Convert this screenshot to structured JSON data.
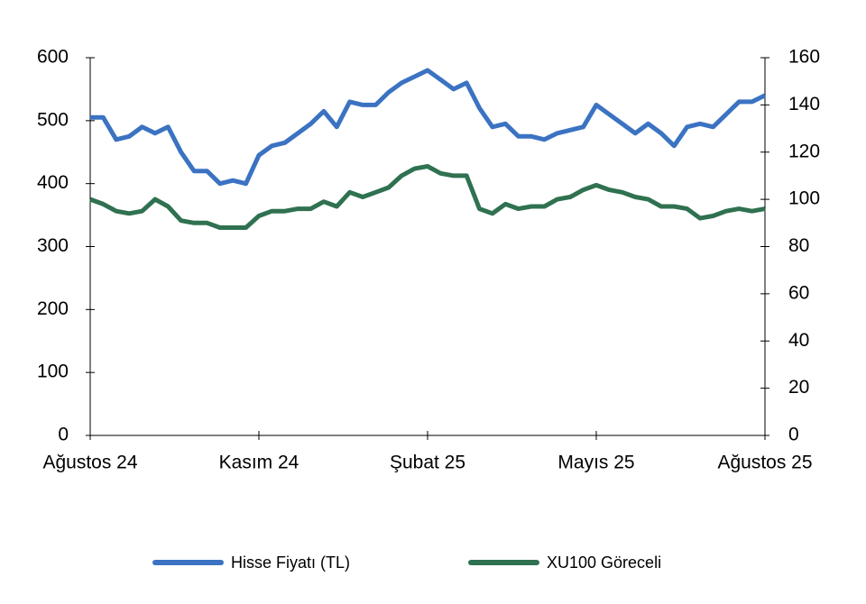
{
  "chart_data": {
    "type": "line",
    "categories": [
      "Ağustos 24",
      null,
      null,
      null,
      null,
      null,
      null,
      null,
      null,
      null,
      null,
      null,
      null,
      "Kasım 24",
      null,
      null,
      null,
      null,
      null,
      null,
      null,
      null,
      null,
      null,
      null,
      null,
      "Şubat 25",
      null,
      null,
      null,
      null,
      null,
      null,
      null,
      null,
      null,
      null,
      null,
      null,
      "Mayıs 25",
      null,
      null,
      null,
      null,
      null,
      null,
      null,
      null,
      null,
      null,
      null,
      null,
      "Ağustos 25"
    ],
    "series": [
      {
        "name": "Hisse Fiyatı (TL)",
        "color": "#3b73c2",
        "axis": "y",
        "values": [
          505,
          505,
          470,
          475,
          490,
          480,
          490,
          450,
          420,
          420,
          400,
          405,
          400,
          445,
          460,
          465,
          480,
          495,
          515,
          490,
          530,
          525,
          525,
          545,
          560,
          570,
          580,
          565,
          550,
          560,
          520,
          490,
          495,
          475,
          475,
          470,
          480,
          485,
          490,
          525,
          510,
          495,
          480,
          495,
          480,
          460,
          490,
          495,
          490,
          510,
          530,
          530,
          540
        ]
      },
      {
        "name": "XU100 Göreceli",
        "color": "#2f7150",
        "axis": "y2",
        "values": [
          100,
          98,
          95,
          94,
          95,
          100,
          97,
          91,
          90,
          90,
          88,
          88,
          88,
          93,
          95,
          95,
          96,
          96,
          99,
          97,
          103,
          101,
          103,
          105,
          110,
          113,
          114,
          111,
          110,
          110,
          96,
          94,
          98,
          96,
          97,
          97,
          100,
          101,
          104,
          106,
          104,
          103,
          101,
          100,
          97,
          97,
          96,
          92,
          93,
          95,
          96,
          95,
          96
        ]
      }
    ],
    "ylim": [
      0,
      600
    ],
    "yticks": [
      0,
      100,
      200,
      300,
      400,
      500,
      600
    ],
    "y2lim": [
      0,
      160
    ],
    "y2ticks": [
      0,
      20,
      40,
      60,
      80,
      100,
      120,
      140,
      160
    ],
    "grid": false,
    "legend": "bottom"
  }
}
